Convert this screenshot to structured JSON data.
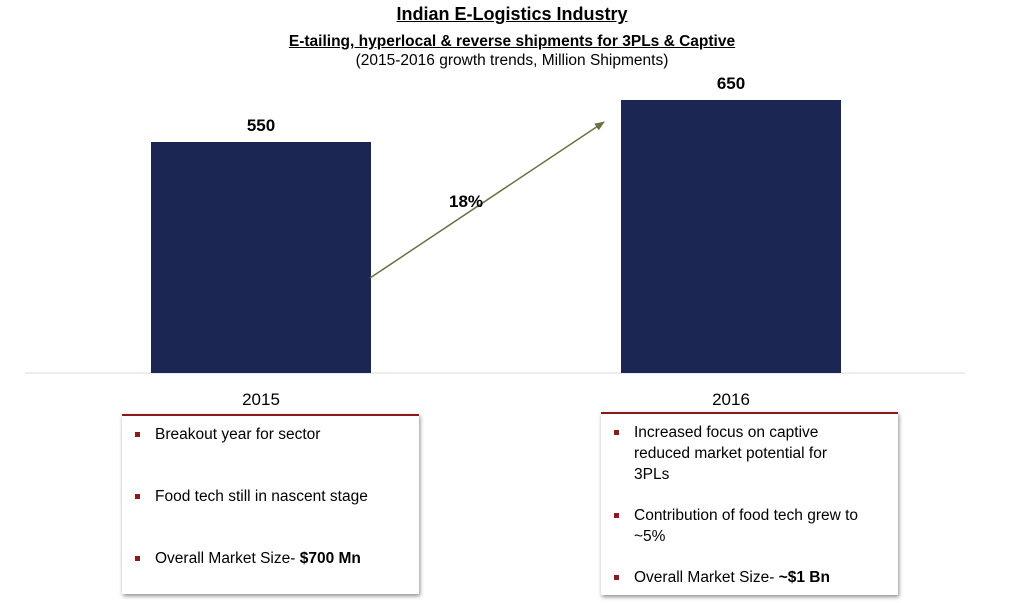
{
  "header": {
    "title": "Indian E-Logistics Industry",
    "subtitle": "E-tailing, hyperlocal & reverse shipments for 3PLs & Captive",
    "note": "(2015-2016 growth trends, Million Shipments)"
  },
  "chart_data": {
    "type": "bar",
    "categories": [
      "2015",
      "2016"
    ],
    "values": [
      550,
      650
    ],
    "data_labels": [
      "550",
      "650"
    ],
    "growth_annotation": "18%",
    "ylim": [
      0,
      700
    ],
    "grid": false,
    "colors": {
      "bar": "#1c2653",
      "arrow": "#6b7045",
      "axis": "#d9d9d9"
    }
  },
  "boxes": [
    {
      "items": [
        {
          "text": "Breakout year for sector",
          "bold": ""
        },
        {
          "text": "Food tech still in nascent stage",
          "bold": ""
        },
        {
          "text": "Overall Market Size- ",
          "bold": "$700 Mn"
        }
      ]
    },
    {
      "items": [
        {
          "text": "Increased focus on captive reduced market potential for 3PLs",
          "bold": ""
        },
        {
          "text": "Contribution of food tech grew to ~5%",
          "bold": ""
        },
        {
          "text": "Overall Market Size- ",
          "bold": "~$1 Bn"
        }
      ]
    }
  ]
}
